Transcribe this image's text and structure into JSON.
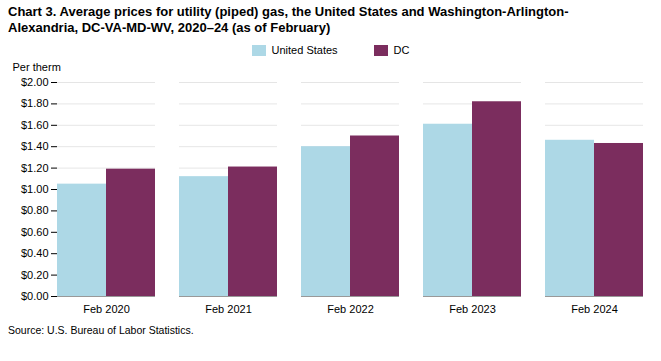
{
  "chart_data": {
    "type": "bar",
    "title": "Chart 3. Average prices for utility (piped) gas, the United States and Washington-Arlington-\nAlexandria, DC-VA-MD-WV, 2020–24 (as of February)",
    "y_label": "Per therm",
    "source": "Source: U.S. Bureau of Labor Statistics.",
    "categories": [
      "Feb 2020",
      "Feb 2021",
      "Feb 2022",
      "Feb 2023",
      "Feb 2024"
    ],
    "series": [
      {
        "name": "United States",
        "color": "#ADD8E6",
        "values": [
          1.05,
          1.12,
          1.4,
          1.61,
          1.46
        ]
      },
      {
        "name": "DC",
        "color": "#7B2D5E",
        "values": [
          1.19,
          1.21,
          1.5,
          1.82,
          1.43
        ]
      }
    ],
    "ylim": [
      0.0,
      2.0
    ],
    "yticks": [
      {
        "value": 0.0,
        "label": "$0.00"
      },
      {
        "value": 0.2,
        "label": "$0.20"
      },
      {
        "value": 0.4,
        "label": "$0.40"
      },
      {
        "value": 0.6,
        "label": "$0.60"
      },
      {
        "value": 0.8,
        "label": "$0.80"
      },
      {
        "value": 1.0,
        "label": "$1.00"
      },
      {
        "value": 1.2,
        "label": "$1.20"
      },
      {
        "value": 1.4,
        "label": "$1.40"
      },
      {
        "value": 1.6,
        "label": "$1.60"
      },
      {
        "value": 1.8,
        "label": "$1.80"
      },
      {
        "value": 2.0,
        "label": "$2.00"
      }
    ],
    "grid": true,
    "legend": "top"
  }
}
